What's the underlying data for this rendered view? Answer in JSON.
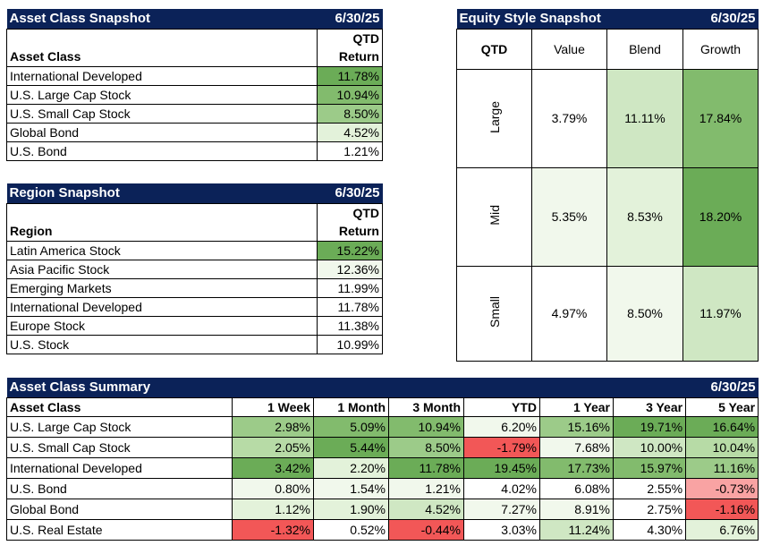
{
  "asset_snapshot": {
    "title": "Asset Class Snapshot",
    "date": "6/30/25",
    "col_label": "Asset Class",
    "ret_line1": "QTD",
    "ret_line2": "Return",
    "rows": [
      {
        "name": "International Developed",
        "value": "11.78%"
      },
      {
        "name": "U.S. Large Cap Stock",
        "value": "10.94%"
      },
      {
        "name": "U.S. Small Cap Stock",
        "value": "8.50%"
      },
      {
        "name": "Global Bond",
        "value": "4.52%"
      },
      {
        "name": "U.S. Bond",
        "value": "1.21%"
      }
    ]
  },
  "region_snapshot": {
    "title": "Region Snapshot",
    "date": "6/30/25",
    "col_label": "Region",
    "ret_line1": "QTD",
    "ret_line2": "Return",
    "rows": [
      {
        "name": "Latin America Stock",
        "value": "15.22%"
      },
      {
        "name": "Asia Pacific Stock",
        "value": "12.36%"
      },
      {
        "name": "Emerging Markets",
        "value": "11.99%"
      },
      {
        "name": "International Developed",
        "value": "11.78%"
      },
      {
        "name": "Europe Stock",
        "value": "11.38%"
      },
      {
        "name": "U.S. Stock",
        "value": "10.99%"
      }
    ]
  },
  "equity_style": {
    "title": "Equity Style Snapshot",
    "date": "6/30/25",
    "corner": "QTD",
    "columns": [
      "Value",
      "Blend",
      "Growth"
    ],
    "rows": [
      {
        "label": "Large",
        "values": [
          "3.79%",
          "11.11%",
          "17.84%"
        ]
      },
      {
        "label": "Mid",
        "values": [
          "5.35%",
          "8.53%",
          "18.20%"
        ]
      },
      {
        "label": "Small",
        "values": [
          "4.97%",
          "8.50%",
          "11.97%"
        ]
      }
    ]
  },
  "summary": {
    "title": "Asset Class Summary",
    "date": "6/30/25",
    "headers": [
      "Asset Class",
      "1 Week",
      "1 Month",
      "3 Month",
      "YTD",
      "1 Year",
      "3 Year",
      "5 Year"
    ],
    "rows": [
      {
        "name": "U.S. Large Cap Stock",
        "values": [
          "2.98%",
          "5.09%",
          "10.94%",
          "6.20%",
          "15.16%",
          "19.71%",
          "16.64%"
        ]
      },
      {
        "name": "U.S. Small Cap Stock",
        "values": [
          "2.05%",
          "5.44%",
          "8.50%",
          "-1.79%",
          "7.68%",
          "10.00%",
          "10.04%"
        ]
      },
      {
        "name": "International Developed",
        "values": [
          "3.42%",
          "2.20%",
          "11.78%",
          "19.45%",
          "17.73%",
          "15.97%",
          "11.16%"
        ]
      },
      {
        "name": "U.S. Bond",
        "values": [
          "0.80%",
          "1.54%",
          "1.21%",
          "4.02%",
          "6.08%",
          "2.55%",
          "-0.73%"
        ]
      },
      {
        "name": "Global Bond",
        "values": [
          "1.12%",
          "1.90%",
          "4.52%",
          "7.27%",
          "8.91%",
          "2.75%",
          "-1.16%"
        ]
      },
      {
        "name": "U.S. Real Estate",
        "values": [
          "-1.32%",
          "0.52%",
          "-0.44%",
          "3.03%",
          "11.24%",
          "4.30%",
          "6.76%"
        ]
      }
    ]
  },
  "colors": {
    "header_bg": "#0b2258",
    "strong_green": "#6bac57",
    "light_green": "#e3f2da",
    "red": "#f25757",
    "light_red": "#f9a3a3"
  }
}
